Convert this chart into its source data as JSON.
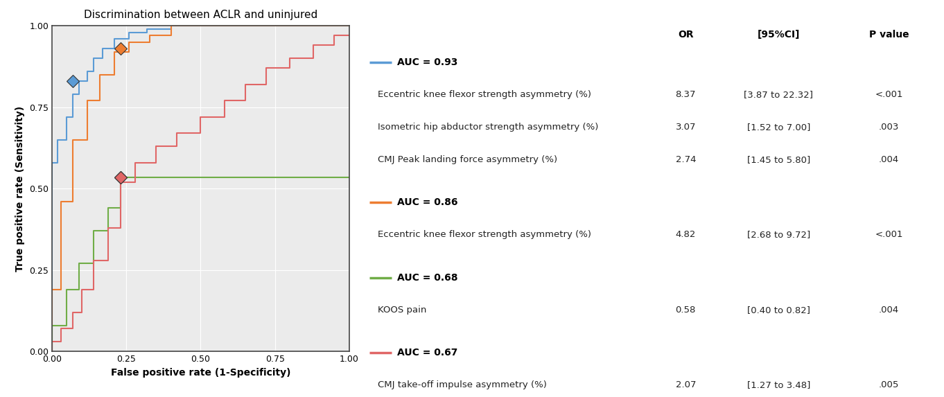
{
  "title": "Discrimination between ACLR and uninjured",
  "xlabel": "False positive rate (1-Specificity)",
  "ylabel": "True positive rate (Sensitivity)",
  "colors": {
    "blue": "#5B9BD5",
    "orange": "#ED7D31",
    "green": "#70AD47",
    "red": "#E06666"
  },
  "roc_blue": {
    "fpr": [
      0.0,
      0.0,
      0.02,
      0.02,
      0.05,
      0.05,
      0.07,
      0.07,
      0.09,
      0.09,
      0.12,
      0.12,
      0.14,
      0.14,
      0.17,
      0.17,
      0.21,
      0.21,
      0.26,
      0.26,
      0.32,
      0.32,
      0.4,
      0.4,
      0.5,
      0.5,
      0.6,
      0.6,
      1.0
    ],
    "tpr": [
      0.0,
      0.58,
      0.58,
      0.65,
      0.65,
      0.72,
      0.72,
      0.79,
      0.79,
      0.83,
      0.83,
      0.86,
      0.86,
      0.9,
      0.9,
      0.93,
      0.93,
      0.96,
      0.96,
      0.98,
      0.98,
      0.99,
      0.99,
      1.0,
      1.0,
      1.0,
      1.0,
      1.0,
      1.0
    ],
    "opt_fpr": 0.07,
    "opt_tpr": 0.83
  },
  "roc_orange": {
    "fpr": [
      0.0,
      0.0,
      0.03,
      0.03,
      0.07,
      0.07,
      0.12,
      0.12,
      0.16,
      0.16,
      0.21,
      0.21,
      0.26,
      0.26,
      0.33,
      0.33,
      0.4,
      0.4,
      1.0
    ],
    "tpr": [
      0.0,
      0.19,
      0.19,
      0.46,
      0.46,
      0.65,
      0.65,
      0.77,
      0.77,
      0.85,
      0.85,
      0.92,
      0.92,
      0.95,
      0.95,
      0.97,
      0.97,
      1.0,
      1.0
    ],
    "opt_fpr": 0.23,
    "opt_tpr": 0.93
  },
  "roc_green": {
    "fpr": [
      0.0,
      0.0,
      0.05,
      0.05,
      0.09,
      0.09,
      0.14,
      0.14,
      0.19,
      0.19,
      0.23,
      0.23,
      1.0
    ],
    "tpr": [
      0.0,
      0.08,
      0.08,
      0.19,
      0.19,
      0.27,
      0.27,
      0.37,
      0.37,
      0.44,
      0.44,
      0.535,
      0.535
    ],
    "opt_fpr": 0.23,
    "opt_tpr": 0.535
  },
  "roc_red": {
    "fpr": [
      0.0,
      0.0,
      0.03,
      0.03,
      0.07,
      0.07,
      0.1,
      0.1,
      0.14,
      0.14,
      0.19,
      0.19,
      0.23,
      0.23,
      0.28,
      0.28,
      0.35,
      0.35,
      0.42,
      0.42,
      0.5,
      0.5,
      0.58,
      0.58,
      0.65,
      0.65,
      0.72,
      0.72,
      0.8,
      0.8,
      0.88,
      0.88,
      0.95,
      0.95,
      1.0
    ],
    "tpr": [
      0.0,
      0.03,
      0.03,
      0.07,
      0.07,
      0.12,
      0.12,
      0.19,
      0.19,
      0.28,
      0.28,
      0.38,
      0.38,
      0.52,
      0.52,
      0.58,
      0.58,
      0.63,
      0.63,
      0.67,
      0.67,
      0.72,
      0.72,
      0.77,
      0.77,
      0.82,
      0.82,
      0.87,
      0.87,
      0.9,
      0.9,
      0.94,
      0.94,
      0.97,
      0.97
    ],
    "opt_fpr": 0.23,
    "opt_tpr": 0.535
  },
  "bg_color": "#EBEBEB",
  "grid_color": "#FFFFFF",
  "table_rows": [
    {
      "type": "auc",
      "label": "AUC = 0.93",
      "color": "#5B9BD5"
    },
    {
      "type": "data",
      "label": "Eccentric knee flexor strength asymmetry (%)",
      "or": "8.37",
      "ci": "[3.87 to 22.32]",
      "pval": "<.001"
    },
    {
      "type": "data",
      "label": "Isometric hip abductor strength asymmetry (%)",
      "or": "3.07",
      "ci": "[1.52 to 7.00]",
      "pval": ".003"
    },
    {
      "type": "data",
      "label": "CMJ Peak landing force asymmetry (%)",
      "or": "2.74",
      "ci": "[1.45 to 5.80]",
      "pval": ".004"
    },
    {
      "type": "auc",
      "label": "AUC = 0.86",
      "color": "#ED7D31"
    },
    {
      "type": "data",
      "label": "Eccentric knee flexor strength asymmetry (%)",
      "or": "4.82",
      "ci": "[2.68 to 9.72]",
      "pval": "<.001"
    },
    {
      "type": "auc",
      "label": "AUC = 0.68",
      "color": "#70AD47"
    },
    {
      "type": "data",
      "label": "KOOS pain",
      "or": "0.58",
      "ci": "[0.40 to 0.82]",
      "pval": ".004"
    },
    {
      "type": "auc",
      "label": "AUC = 0.67",
      "color": "#E06666"
    },
    {
      "type": "data",
      "label": "CMJ take-off impulse asymmetry (%)",
      "or": "2.07",
      "ci": "[1.27 to 3.48]",
      "pval": ".005"
    }
  ]
}
